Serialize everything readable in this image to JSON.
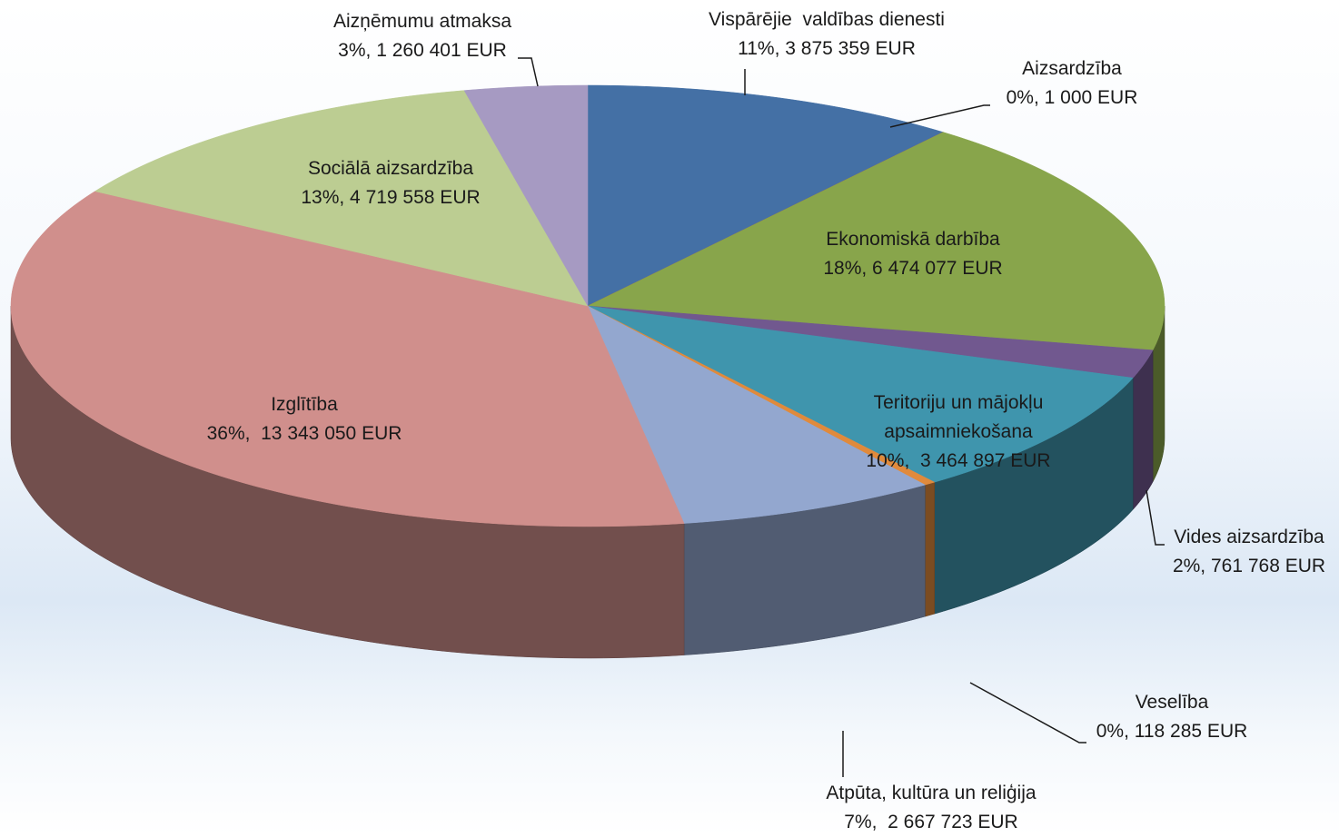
{
  "chart_data": {
    "type": "pie3d",
    "categories": [
      "Vispārējie  valdības dienesti",
      "Aizsardzība",
      "Ekonomiskā darbība",
      "Vides aizsardzība",
      "Teritoriju un mājokļu apsaimniekošana",
      "Veselība",
      "Atpūta, kultūra un reliģija",
      "Izglītība",
      "Sociālā aizsardzība",
      "Aizņēmumu atmaksa"
    ],
    "values": [
      3875359,
      1000,
      6474077,
      761768,
      3464897,
      118285,
      2667723,
      13343050,
      4719558,
      1260401
    ],
    "value_labels": [
      "11%, 3 875 359 EUR",
      "0%, 1 000 EUR",
      "18%, 6 474 077 EUR",
      "2%, 761 768 EUR",
      "10%,  3 464 897 EUR",
      "0%, 118 285 EUR",
      "7%,  2 667 723 EUR",
      "36%,  13 343 050 EUR",
      "13%, 4 719 558 EUR",
      "3%, 1 260 401 EUR"
    ],
    "colors": [
      "#4470a5",
      "#c0504d",
      "#88a54b",
      "#71588f",
      "#3f95ad",
      "#e08a3c",
      "#93a7cf",
      "#d08f8c",
      "#bccd92",
      "#a69ac2"
    ]
  }
}
